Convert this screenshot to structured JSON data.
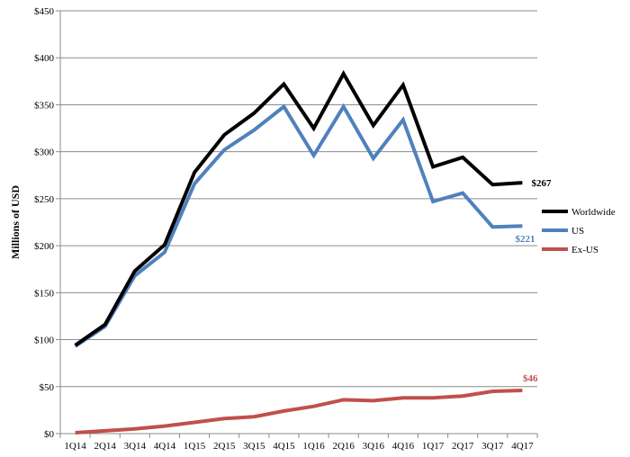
{
  "chart_data": {
    "type": "line",
    "title": "",
    "xlabel": "",
    "ylabel": "Millions of USD",
    "categories": [
      "1Q14",
      "2Q14",
      "3Q14",
      "4Q14",
      "1Q15",
      "2Q15",
      "3Q15",
      "4Q15",
      "1Q16",
      "2Q16",
      "3Q16",
      "4Q16",
      "1Q17",
      "2Q17",
      "3Q17",
      "4Q17"
    ],
    "ylim": [
      0,
      450
    ],
    "yticks": [
      0,
      50,
      100,
      150,
      200,
      250,
      300,
      350,
      400,
      450
    ],
    "ytick_labels": [
      "$0",
      "$50",
      "$100",
      "$150",
      "$200",
      "$250",
      "$300",
      "$350",
      "$400",
      "$450"
    ],
    "grid": "horizontal",
    "legend_position": "right",
    "series": [
      {
        "name": "Worldwide",
        "color": "#000000",
        "end_label": "$267",
        "values": [
          94,
          116,
          173,
          201,
          278,
          318,
          341,
          372,
          325,
          383,
          328,
          371,
          284,
          294,
          265,
          267
        ]
      },
      {
        "name": "US",
        "color": "#4f81bd",
        "end_label": "$221",
        "values": [
          93,
          114,
          168,
          193,
          266,
          302,
          323,
          348,
          296,
          348,
          293,
          334,
          247,
          256,
          220,
          221
        ]
      },
      {
        "name": "Ex-US",
        "color": "#c0504d",
        "end_label": "$46",
        "values": [
          1,
          3,
          5,
          8,
          12,
          16,
          18,
          24,
          29,
          36,
          35,
          38,
          38,
          40,
          45,
          46
        ]
      }
    ]
  }
}
